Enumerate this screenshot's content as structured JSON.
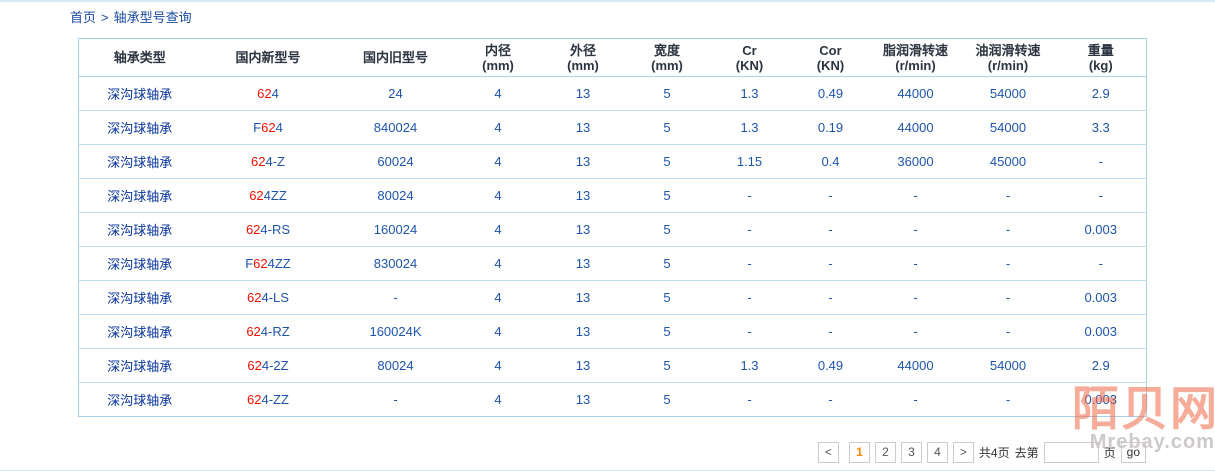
{
  "breadcrumb": {
    "home": "首页",
    "separator": ">",
    "current": "轴承型号查询"
  },
  "colors": {
    "value_blue": "#1d55ab",
    "type_link_blue": "#06339c",
    "highlight_red": "#ee1100",
    "current_page_orange": "#ff8800",
    "table_border": "#a9d0e8",
    "watermark_orange": "rgba(241,102,69,0.55)"
  },
  "table": {
    "headers": [
      {
        "title": "轴承类型",
        "unit": ""
      },
      {
        "title": "国内新型号",
        "unit": ""
      },
      {
        "title": "国内旧型号",
        "unit": ""
      },
      {
        "title": "内径",
        "unit": "(mm)"
      },
      {
        "title": "外径",
        "unit": "(mm)"
      },
      {
        "title": "宽度",
        "unit": "(mm)"
      },
      {
        "title": "Cr",
        "unit": "(KN)"
      },
      {
        "title": "Cor",
        "unit": "(KN)"
      },
      {
        "title": "脂润滑转速",
        "unit": "(r/min)"
      },
      {
        "title": "油润滑转速",
        "unit": "(r/min)"
      },
      {
        "title": "重量",
        "unit": "(kg)"
      }
    ],
    "rows": [
      {
        "type": "深沟球轴承",
        "model": {
          "pre": "",
          "hl": "62",
          "post": "4"
        },
        "values": [
          "24",
          "4",
          "13",
          "5",
          "1.3",
          "0.49",
          "44000",
          "54000",
          "2.9"
        ]
      },
      {
        "type": "深沟球轴承",
        "model": {
          "pre": "F",
          "hl": "62",
          "post": "4"
        },
        "values": [
          "840024",
          "4",
          "13",
          "5",
          "1.3",
          "0.19",
          "44000",
          "54000",
          "3.3"
        ]
      },
      {
        "type": "深沟球轴承",
        "model": {
          "pre": "",
          "hl": "62",
          "post": "4-Z"
        },
        "values": [
          "60024",
          "4",
          "13",
          "5",
          "1.15",
          "0.4",
          "36000",
          "45000",
          "-"
        ]
      },
      {
        "type": "深沟球轴承",
        "model": {
          "pre": "",
          "hl": "62",
          "post": "4ZZ"
        },
        "values": [
          "80024",
          "4",
          "13",
          "5",
          "-",
          "-",
          "-",
          "-",
          "-"
        ]
      },
      {
        "type": "深沟球轴承",
        "model": {
          "pre": "",
          "hl": "62",
          "post": "4-RS"
        },
        "values": [
          "160024",
          "4",
          "13",
          "5",
          "-",
          "-",
          "-",
          "-",
          "0.003"
        ]
      },
      {
        "type": "深沟球轴承",
        "model": {
          "pre": "F",
          "hl": "62",
          "post": "4ZZ"
        },
        "values": [
          "830024",
          "4",
          "13",
          "5",
          "-",
          "-",
          "-",
          "-",
          "-"
        ]
      },
      {
        "type": "深沟球轴承",
        "model": {
          "pre": "",
          "hl": "62",
          "post": "4-LS"
        },
        "values": [
          "-",
          "4",
          "13",
          "5",
          "-",
          "-",
          "-",
          "-",
          "0.003"
        ]
      },
      {
        "type": "深沟球轴承",
        "model": {
          "pre": "",
          "hl": "62",
          "post": "4-RZ"
        },
        "values": [
          "160024K",
          "4",
          "13",
          "5",
          "-",
          "-",
          "-",
          "-",
          "0.003"
        ]
      },
      {
        "type": "深沟球轴承",
        "model": {
          "pre": "",
          "hl": "62",
          "post": "4-2Z"
        },
        "values": [
          "80024",
          "4",
          "13",
          "5",
          "1.3",
          "0.49",
          "44000",
          "54000",
          "2.9"
        ]
      },
      {
        "type": "深沟球轴承",
        "model": {
          "pre": "",
          "hl": "62",
          "post": "4-ZZ"
        },
        "values": [
          "-",
          "4",
          "13",
          "5",
          "-",
          "-",
          "-",
          "-",
          "0.003"
        ]
      }
    ]
  },
  "pagination": {
    "prev": "<",
    "next": ">",
    "pages": [
      "1",
      "2",
      "3",
      "4"
    ],
    "current": "1",
    "total_text": "共4页",
    "goto_label": "去第",
    "page_label": "页",
    "go_label": "go",
    "input_value": ""
  },
  "watermark": {
    "cn": "陌贝网",
    "en": "Mrebay.com"
  }
}
